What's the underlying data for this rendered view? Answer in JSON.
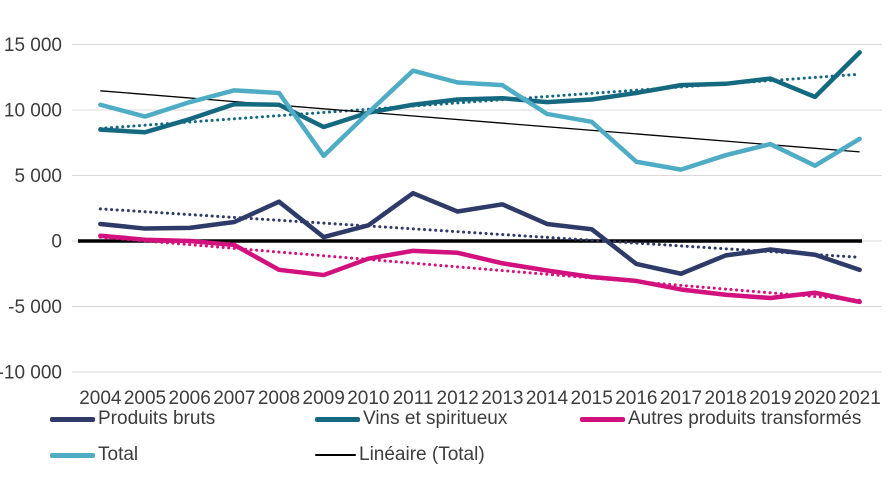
{
  "chart_data": {
    "type": "line",
    "title": "",
    "xlabel": "",
    "ylabel": "",
    "grid": true,
    "gridline_color": "#D9D9D9",
    "axis_text_color": "#3d3d3d",
    "categories": [
      "2004",
      "2005",
      "2006",
      "2007",
      "2008",
      "2009",
      "2010",
      "2011",
      "2012",
      "2013",
      "2014",
      "2015",
      "2016",
      "2017",
      "2018",
      "2019",
      "2020",
      "2021"
    ],
    "y_axis": {
      "ylim": [
        -10000,
        15000
      ],
      "ticks": [
        {
          "value": 15000,
          "label": "15 000"
        },
        {
          "value": 10000,
          "label": "10 000"
        },
        {
          "value": 5000,
          "label": "5 000"
        },
        {
          "value": 0,
          "label": "0"
        },
        {
          "value": -5000,
          "label": "-5 000"
        },
        {
          "value": -10000,
          "label": "-10 000"
        }
      ]
    },
    "series": [
      {
        "name": "Produits bruts",
        "color": "#2E3A67",
        "values": [
          1300,
          950,
          1000,
          1450,
          3000,
          300,
          1200,
          3650,
          2250,
          2800,
          1300,
          900,
          -1750,
          -2500,
          -1100,
          -650,
          -1050,
          -2200
        ],
        "trendline": {
          "style": "dotted",
          "color": "#2E3A67"
        }
      },
      {
        "name": "Vins et spiritueux",
        "color": "#14687F",
        "values": [
          8500,
          8300,
          9300,
          10450,
          10400,
          8700,
          9800,
          10400,
          10800,
          10900,
          10600,
          10800,
          11300,
          11900,
          12000,
          12400,
          11000,
          14400
        ],
        "trendline": {
          "style": "dotted",
          "color": "#14687F"
        }
      },
      {
        "name": "Autres produits transformés",
        "color": "#D2107E",
        "values": [
          400,
          100,
          0,
          -300,
          -2200,
          -2600,
          -1350,
          -750,
          -900,
          -1700,
          -2250,
          -2750,
          -3050,
          -3700,
          -4100,
          -4350,
          -3950,
          -4650
        ],
        "trendline": {
          "style": "dotted",
          "color": "#D2107E"
        }
      },
      {
        "name": "Total",
        "color": "#4FACC5",
        "values": [
          10400,
          9500,
          10600,
          11500,
          11300,
          6500,
          9800,
          13000,
          12100,
          11900,
          9700,
          9100,
          6050,
          5450,
          6550,
          7400,
          5750,
          7800
        ],
        "trendline": {
          "style": "solid",
          "color": "#000000",
          "label": "Linéaire (Total)"
        }
      }
    ],
    "legend_position": "bottom"
  },
  "legend": {
    "items": [
      {
        "label": "Produits bruts",
        "color": "#2E3A67",
        "swatch": "thick"
      },
      {
        "label": "Vins et spiritueux",
        "color": "#14687F",
        "swatch": "thick"
      },
      {
        "label": "Autres produits transformés",
        "color": "#D2107E",
        "swatch": "thick"
      },
      {
        "label": "Total",
        "color": "#4FACC5",
        "swatch": "thick"
      },
      {
        "label": "Linéaire (Total)",
        "color": "#000000",
        "swatch": "thin"
      }
    ]
  }
}
